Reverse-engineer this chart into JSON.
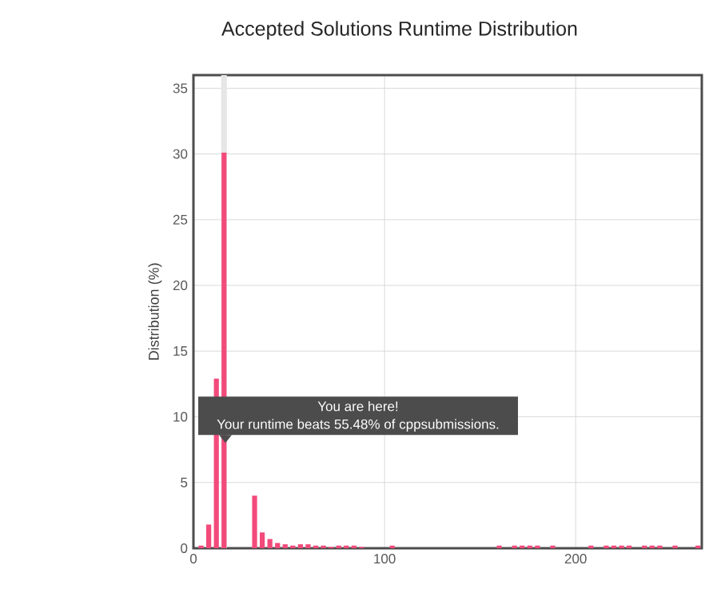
{
  "chart_data": {
    "type": "bar",
    "title": "Accepted Solutions Runtime Distribution",
    "ylabel": "Distribution (%)",
    "x": [
      4,
      8,
      12,
      16,
      20,
      24,
      28,
      32,
      36,
      40,
      44,
      48,
      52,
      56,
      60,
      64,
      68,
      72,
      76,
      80,
      84,
      88,
      104,
      160,
      168,
      172,
      176,
      180,
      188,
      208,
      216,
      220,
      224,
      228,
      236,
      240,
      244,
      252,
      264
    ],
    "values": [
      0.2,
      1.8,
      12.9,
      30.1,
      null,
      null,
      null,
      4.0,
      1.2,
      0.7,
      0.4,
      0.3,
      0.2,
      0.3,
      0.3,
      0.2,
      0.2,
      0.1,
      0.2,
      0.2,
      0.2,
      0.1,
      0.2,
      0.2,
      0.2,
      0.2,
      0.2,
      0.2,
      0.2,
      0.2,
      0.2,
      0.2,
      0.2,
      0.2,
      0.2,
      0.2,
      0.2,
      0.2,
      0.2
    ],
    "color": "#f24a7b",
    "xlim": [
      0,
      266
    ],
    "ylim": [
      0,
      36
    ],
    "xticks": [
      0,
      100,
      200
    ],
    "yticks": [
      0,
      5,
      10,
      15,
      20,
      25,
      30,
      35
    ],
    "grid": true,
    "bands": [
      {
        "axis": "x",
        "from": 14.5,
        "to": 17.5,
        "color": "#e6e6e6"
      }
    ],
    "annotations": [
      "You are here!",
      "Your runtime beats 55.48% of cppsubmissions."
    ]
  }
}
